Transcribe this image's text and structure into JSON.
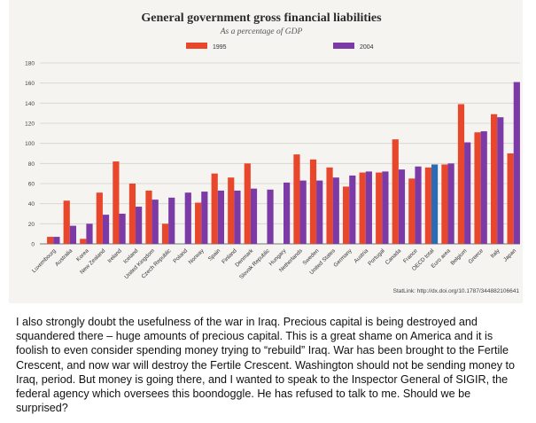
{
  "chart_data": {
    "type": "bar",
    "title": "General government gross financial liabilities",
    "subtitle": "As a percentage of GDP",
    "ylim": [
      0,
      180
    ],
    "yticks": [
      0,
      20,
      40,
      60,
      80,
      100,
      120,
      140,
      160,
      180
    ],
    "grid": true,
    "legend_placement": "top",
    "categories": [
      "Luxembourg",
      "Australia",
      "Korea",
      "New Zealand",
      "Ireland",
      "Iceland",
      "United Kingdom",
      "Czech Republic",
      "Poland",
      "Norway",
      "Spain",
      "Finland",
      "Denmark",
      "Slovak Republic",
      "Hungary",
      "Netherlands",
      "Sweden",
      "United States",
      "Germany",
      "Austria",
      "Portugal",
      "Canada",
      "France",
      "OECD total",
      "Euro area",
      "Belgium",
      "Greece",
      "Italy",
      "Japan"
    ],
    "series": [
      {
        "name": "1995",
        "color": "#e8472b",
        "values": [
          7,
          43,
          5,
          51,
          82,
          60,
          53,
          20,
          null,
          41,
          70,
          66,
          80,
          null,
          null,
          89,
          84,
          76,
          57,
          71,
          71,
          104,
          65,
          76,
          79,
          139,
          111,
          129,
          90
        ]
      },
      {
        "name": "2004",
        "color": "#7b3aa6",
        "values": [
          7,
          18,
          20,
          29,
          30,
          37,
          44,
          46,
          51,
          52,
          53,
          53,
          55,
          54,
          61,
          63,
          63,
          66,
          68,
          72,
          72,
          74,
          77,
          79,
          80,
          101,
          112,
          126,
          161
        ]
      }
    ],
    "highlight_category": "OECD total",
    "highlight_color": "#2a6bb5",
    "source_note": "StatLink: http://dx.doi.org/10.1787/344882106641"
  },
  "caption": "I also strongly doubt the usefulness of the war in Iraq. Precious capital is being destroyed and squandered there – huge amounts of precious capital. This is a great shame on America and it is foolish to even consider spending money trying to “rebuild” Iraq. War has been brought to the Fertile Crescent, and now war will destroy the Fertile Crescent. Washington should not be sending money to Iraq, period. But money is going there, and I wanted to speak to the Inspector General of SIGIR, the federal agency which oversees this boondoggle. He has refused to talk to me. Should we be surprised?"
}
